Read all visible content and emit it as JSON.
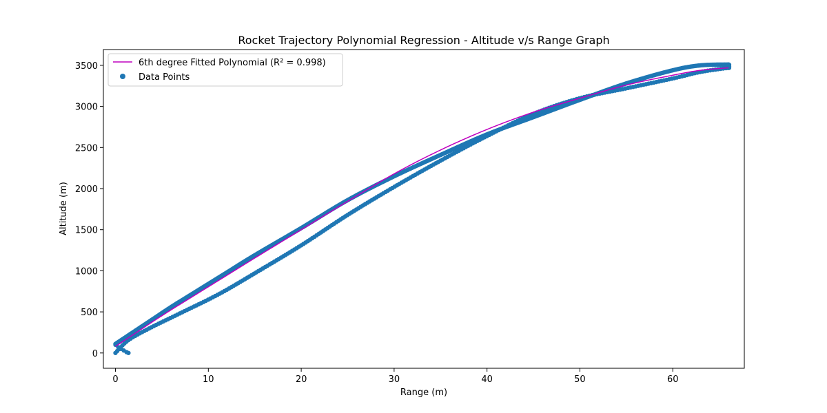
{
  "chart_data": {
    "type": "scatter",
    "title": "Rocket Trajectory Polynomial Regression - Altitude v/s Range Graph",
    "xlabel": "Range (m)",
    "ylabel": "Altitude (m)",
    "xlim": [
      -1.3,
      67.7
    ],
    "ylim": [
      -186,
      3692
    ],
    "xticks": [
      0,
      10,
      20,
      30,
      40,
      50,
      60
    ],
    "yticks": [
      0,
      500,
      1000,
      1500,
      2000,
      2500,
      3000,
      3500
    ],
    "grid": false,
    "legend_position": "upper-left",
    "colors": {
      "fit": "#bf00bf",
      "points": "#1f77b4"
    },
    "series": [
      {
        "name": "6th degree Fitted Polynomial (R² = 0.998)",
        "kind": "line",
        "x": [
          0,
          2,
          4,
          6,
          8,
          10,
          12,
          15,
          20,
          25,
          30,
          35,
          40,
          45,
          50,
          55,
          60,
          63,
          66
        ],
        "y": [
          80,
          230,
          380,
          525,
          665,
          805,
          945,
          1155,
          1500,
          1845,
          2180,
          2470,
          2720,
          2930,
          3100,
          3260,
          3380,
          3440,
          3470
        ]
      },
      {
        "name": "Data Points",
        "kind": "scatter",
        "ascent": {
          "x": [
            0,
            2,
            4,
            6,
            8,
            10,
            12,
            15,
            20,
            25,
            30,
            35,
            40,
            45,
            50,
            55,
            60,
            63,
            66
          ],
          "y": [
            110,
            260,
            410,
            560,
            700,
            840,
            980,
            1190,
            1520,
            1860,
            2150,
            2410,
            2660,
            2870,
            3080,
            3280,
            3440,
            3500,
            3510
          ]
        },
        "descent": {
          "x": [
            66,
            63,
            60,
            55,
            50,
            45,
            40,
            35,
            30,
            25,
            20,
            15,
            12,
            10,
            8,
            6,
            4,
            2,
            1,
            0
          ],
          "y": [
            3470,
            3420,
            3340,
            3220,
            3100,
            2910,
            2640,
            2340,
            2020,
            1680,
            1310,
            970,
            770,
            650,
            540,
            430,
            320,
            200,
            120,
            0
          ]
        },
        "landing": {
          "x": [
            0,
            0.3,
            0.6,
            0.9,
            1.2,
            1.4
          ],
          "y": [
            100,
            70,
            50,
            30,
            10,
            0
          ]
        }
      }
    ]
  }
}
